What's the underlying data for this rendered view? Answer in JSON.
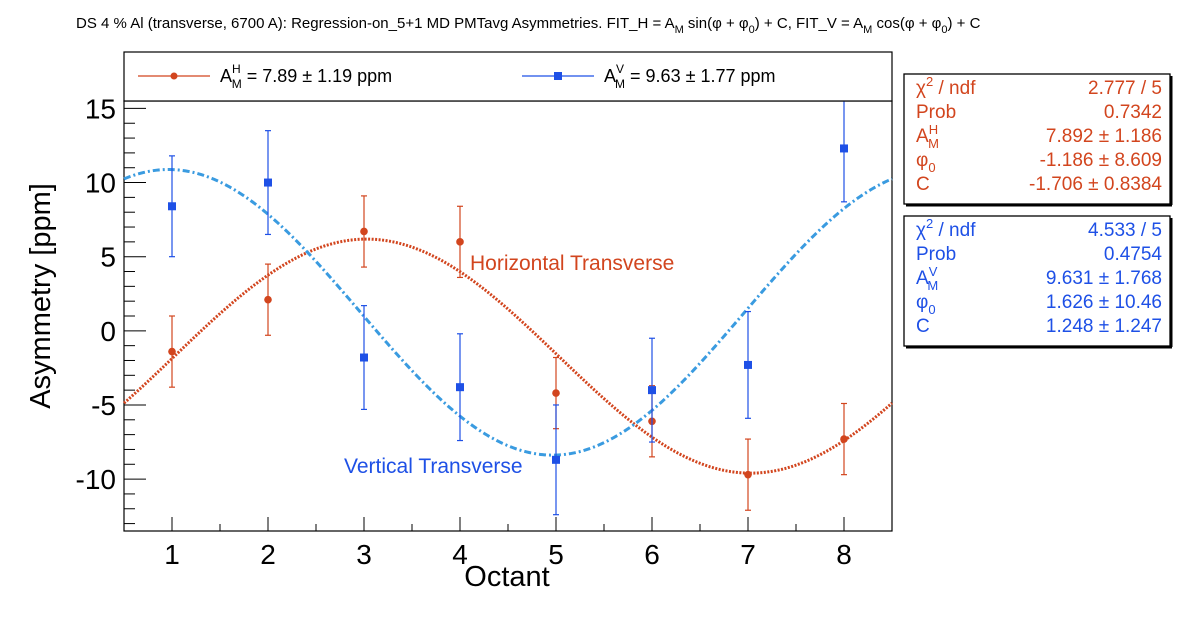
{
  "title": {
    "main": "DS 4 % Al (transverse, 6700 A): Regression-on_5+1 MD PMTavg Asymmetries. FIT_H = A",
    "sub1": "M",
    "mid1": " sin(φ + φ",
    "sub2": "0",
    "mid2": ") + C, FIT_V = A",
    "sub3": "M",
    "mid3": " cos(φ + φ",
    "sub4": "0",
    "end": ") + C"
  },
  "colors": {
    "horizontal": "#d2451e",
    "vertical": "#1e50e6",
    "vertical_fit": "#3a9be0"
  },
  "legend": {
    "h_base": "A",
    "h_sup": "H",
    "h_sub": "M",
    "h_value": " = 7.89 ± 1.19 ppm",
    "v_base": "A",
    "v_sup": "V",
    "v_sub": "M",
    "v_value": " = 9.63 ± 1.77 ppm"
  },
  "stats_h": {
    "rows": [
      {
        "label": "χ",
        "label_sup": "2",
        "label_rest": " / ndf",
        "value": "2.777 / 5"
      },
      {
        "label": "Prob",
        "value": "0.7342"
      },
      {
        "label": "A",
        "label_sup": "H",
        "label_sub": "M",
        "value": "7.892 ± 1.186"
      },
      {
        "label": "φ",
        "label_sub": "0",
        "value": "-1.186 ± 8.609"
      },
      {
        "label": "C",
        "value": "-1.706 ± 0.8384"
      }
    ]
  },
  "stats_v": {
    "rows": [
      {
        "label": "χ",
        "label_sup": "2",
        "label_rest": " / ndf",
        "value": "4.533 / 5"
      },
      {
        "label": "Prob",
        "value": "0.4754"
      },
      {
        "label": "A",
        "label_sup": "V",
        "label_sub": "M",
        "value": "9.631 ± 1.768"
      },
      {
        "label": "φ",
        "label_sub": "0",
        "value": "1.626 ± 10.46"
      },
      {
        "label": "C",
        "value": "1.248 ± 1.247"
      }
    ]
  },
  "annotations": {
    "horizontal": "Horizontal Transverse",
    "vertical": "Vertical Transverse"
  },
  "chart_data": {
    "type": "scatter",
    "xlabel": "Octant",
    "ylabel": "Asymmetry [ppm]",
    "xlim": [
      0.5,
      8.5
    ],
    "ylim": [
      -13.5,
      15.5
    ],
    "x_ticks": [
      1,
      2,
      3,
      4,
      5,
      6,
      7,
      8
    ],
    "y_ticks": [
      -10,
      -5,
      0,
      5,
      10,
      15
    ],
    "grid": false,
    "legend_position": "top",
    "series": [
      {
        "key": "horizontal",
        "marker": "circle",
        "x": [
          1,
          2,
          3,
          4,
          5,
          6,
          7,
          8
        ],
        "y": [
          -1.4,
          2.1,
          6.7,
          6.0,
          -4.2,
          -6.1,
          -9.7,
          -7.3
        ],
        "err": [
          2.4,
          2.4,
          2.4,
          2.4,
          2.4,
          2.4,
          2.4,
          2.4
        ],
        "fit": {
          "A": 7.892,
          "phi0_deg": -1.186,
          "C": -1.706,
          "func": "sin"
        }
      },
      {
        "key": "vertical",
        "marker": "square",
        "x": [
          1,
          2,
          3,
          4,
          5,
          6,
          7,
          8
        ],
        "y": [
          8.4,
          10.0,
          -1.8,
          -3.8,
          -8.7,
          -4.0,
          -2.3,
          12.3
        ],
        "err": [
          3.4,
          3.5,
          3.5,
          3.6,
          3.7,
          3.5,
          3.6,
          3.6
        ],
        "fit": {
          "A": 9.631,
          "phi0_deg": 1.626,
          "C": 1.248,
          "func": "cos"
        }
      }
    ]
  }
}
